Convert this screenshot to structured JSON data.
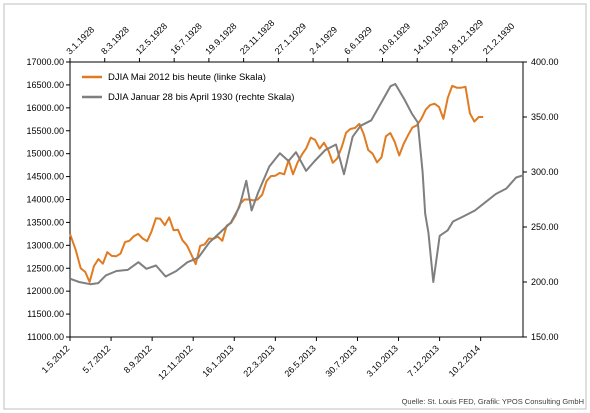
{
  "chart_data": {
    "type": "line",
    "source": "Quelle: St. Louis FED, Grafik: YPOS Consulting GmbH",
    "colors": {
      "series_modern": "#e07b22",
      "series_1929": "#7f7f7f",
      "axis": "#000000",
      "text": "#000000"
    },
    "legend_position": "top-left",
    "grid": false,
    "axis_left": {
      "ylim": [
        11000,
        17000
      ],
      "ticks": [
        11000,
        11500,
        12000,
        12500,
        13000,
        13500,
        14000,
        14500,
        15000,
        15500,
        16000,
        16500,
        17000
      ],
      "tick_labels": [
        "11000.00",
        "11500.00",
        "12000.00",
        "12500.00",
        "13000.00",
        "13500.00",
        "14000.00",
        "14500.00",
        "15000.00",
        "15500.00",
        "16000.00",
        "16500.00",
        "17000.00"
      ]
    },
    "axis_right": {
      "ylim": [
        150,
        400
      ],
      "ticks": [
        150,
        200,
        250,
        300,
        350,
        400
      ],
      "tick_labels": [
        "150.00",
        "200.00",
        "250.00",
        "300.00",
        "350.00",
        "400.00"
      ]
    },
    "axis_bottom": {
      "tick_labels": [
        "1.5.2012",
        "5.7.2012",
        "8.9.2012",
        "12.11.2012",
        "16.1.2013",
        "22.3.2013",
        "26.5.2013",
        "30.7.2013",
        "3.10.2013",
        "7.12.2013",
        "10.2.2014"
      ],
      "range": [
        "2012-05-01",
        "2014-04-18"
      ]
    },
    "axis_top": {
      "tick_labels": [
        "3.1.1928",
        "8.3.1928",
        "12.5.1928",
        "16.7.1928",
        "19.9.1928",
        "23.11.1928",
        "27.1.1929",
        "2.4.1929",
        "6.6.1929",
        "10.8.1929",
        "14.10.1929",
        "18.12.1929",
        "21.2.1930"
      ],
      "range": [
        "1928-01-03",
        "1930-04-30"
      ]
    },
    "series": [
      {
        "name": "DJIA Mai 2012 bis heute (linke Skala)",
        "axis": "left",
        "x": [
          "2012-05-01",
          "2012-05-10",
          "2012-05-18",
          "2012-05-25",
          "2012-06-01",
          "2012-06-08",
          "2012-06-15",
          "2012-06-22",
          "2012-06-29",
          "2012-07-06",
          "2012-07-13",
          "2012-07-20",
          "2012-07-27",
          "2012-08-03",
          "2012-08-10",
          "2012-08-17",
          "2012-08-24",
          "2012-08-31",
          "2012-09-07",
          "2012-09-14",
          "2012-09-21",
          "2012-09-28",
          "2012-10-05",
          "2012-10-12",
          "2012-10-19",
          "2012-10-26",
          "2012-11-02",
          "2012-11-09",
          "2012-11-16",
          "2012-11-23",
          "2012-11-30",
          "2012-12-07",
          "2012-12-14",
          "2012-12-21",
          "2012-12-28",
          "2013-01-04",
          "2013-01-11",
          "2013-01-18",
          "2013-01-25",
          "2013-02-01",
          "2013-02-08",
          "2013-02-15",
          "2013-02-22",
          "2013-03-01",
          "2013-03-08",
          "2013-03-15",
          "2013-03-22",
          "2013-03-29",
          "2013-04-05",
          "2013-04-12",
          "2013-04-19",
          "2013-04-26",
          "2013-05-03",
          "2013-05-10",
          "2013-05-17",
          "2013-05-24",
          "2013-05-31",
          "2013-06-07",
          "2013-06-14",
          "2013-06-21",
          "2013-06-28",
          "2013-07-05",
          "2013-07-12",
          "2013-07-19",
          "2013-07-26",
          "2013-08-02",
          "2013-08-09",
          "2013-08-16",
          "2013-08-23",
          "2013-08-30",
          "2013-09-06",
          "2013-09-13",
          "2013-09-20",
          "2013-09-27",
          "2013-10-04",
          "2013-10-11",
          "2013-10-18",
          "2013-10-25",
          "2013-11-01",
          "2013-11-08",
          "2013-11-15",
          "2013-11-22",
          "2013-11-29",
          "2013-12-06",
          "2013-12-13",
          "2013-12-20",
          "2013-12-27",
          "2014-01-03",
          "2014-01-10",
          "2014-01-17",
          "2014-01-24",
          "2014-01-31",
          "2014-02-07",
          "2014-02-14"
        ],
        "y": [
          13250,
          12900,
          12500,
          12420,
          12200,
          12550,
          12700,
          12600,
          12850,
          12770,
          12760,
          12820,
          13070,
          13100,
          13200,
          13250,
          13150,
          13090,
          13300,
          13590,
          13580,
          13440,
          13610,
          13330,
          13340,
          13110,
          13000,
          12800,
          12590,
          12990,
          13020,
          13150,
          13140,
          13190,
          13100,
          13430,
          13490,
          13650,
          13900,
          14000,
          14000,
          13980,
          14000,
          14100,
          14400,
          14510,
          14520,
          14580,
          14550,
          14860,
          14550,
          14800,
          14980,
          15120,
          15350,
          15300,
          15110,
          15240,
          15070,
          14800,
          14900,
          15140,
          15460,
          15540,
          15560,
          15650,
          15420,
          15080,
          15000,
          14810,
          14920,
          15380,
          15450,
          15260,
          14960,
          15210,
          15400,
          15570,
          15620,
          15760,
          15960,
          16060,
          16090,
          16020,
          15760,
          16220,
          16480,
          16440,
          16440,
          16460,
          15880,
          15700,
          15800,
          15800
        ]
      },
      {
        "name": "DJIA Januar 28 bis April 1930 (rechte Skala)",
        "axis": "right",
        "x": [
          "1928-01-03",
          "1928-01-20",
          "1928-02-10",
          "1928-02-25",
          "1928-03-10",
          "1928-03-30",
          "1928-04-20",
          "1928-05-10",
          "1928-05-25",
          "1928-06-12",
          "1928-06-30",
          "1928-07-20",
          "1928-08-10",
          "1928-08-30",
          "1928-09-20",
          "1928-10-10",
          "1928-10-30",
          "1928-11-15",
          "1928-11-28",
          "1928-12-08",
          "1928-12-20",
          "1929-01-10",
          "1929-01-30",
          "1929-02-15",
          "1929-03-01",
          "1929-03-20",
          "1929-04-05",
          "1929-04-25",
          "1929-05-15",
          "1929-05-30",
          "1929-06-15",
          "1929-06-30",
          "1929-07-20",
          "1929-08-10",
          "1929-08-25",
          "1929-09-03",
          "1929-09-20",
          "1929-10-04",
          "1929-10-15",
          "1929-10-24",
          "1929-10-29",
          "1929-11-04",
          "1929-11-13",
          "1929-11-25",
          "1929-12-10",
          "1929-12-20",
          "1930-01-10",
          "1930-01-30",
          "1930-02-20",
          "1930-03-10",
          "1930-03-30",
          "1930-04-17",
          "1930-04-30"
        ],
        "y": [
          203,
          200,
          198,
          199,
          206,
          210,
          211,
          218,
          212,
          215,
          205,
          210,
          218,
          222,
          236,
          245,
          254,
          268,
          292,
          265,
          281,
          305,
          317,
          310,
          318,
          301,
          310,
          320,
          325,
          298,
          332,
          342,
          347,
          365,
          378,
          380,
          366,
          353,
          345,
          300,
          262,
          245,
          200,
          242,
          247,
          255,
          260,
          265,
          273,
          280,
          285,
          295,
          297
        ]
      }
    ]
  }
}
